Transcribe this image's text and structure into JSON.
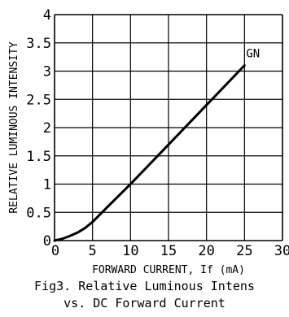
{
  "chart_data": {
    "type": "line",
    "xlabel": "FORWARD CURRENT, If (mA)",
    "ylabel": "RELATIVE LUMINOUS INTENSITY",
    "xlim": [
      0,
      30
    ],
    "ylim": [
      0,
      4
    ],
    "x_ticks": [
      "0",
      "5",
      "10",
      "15",
      "20",
      "25",
      "30"
    ],
    "y_ticks": [
      "0",
      "0.5",
      "1",
      "1.5",
      "2",
      "2.5",
      "3",
      "3.5",
      "4"
    ],
    "grid": true,
    "series": [
      {
        "name": "GN",
        "x": [
          0,
          1,
          2,
          3,
          4,
          5,
          7,
          10,
          15,
          20,
          25
        ],
        "y": [
          0,
          0.03,
          0.08,
          0.14,
          0.22,
          0.33,
          0.6,
          1.0,
          1.7,
          2.4,
          3.1
        ]
      }
    ],
    "colors": {
      "line": "#000000",
      "grid": "#000000"
    }
  },
  "caption": {
    "line1": "Fig3. Relative Luminous Intens",
    "line2": "vs. DC Forward Current"
  }
}
